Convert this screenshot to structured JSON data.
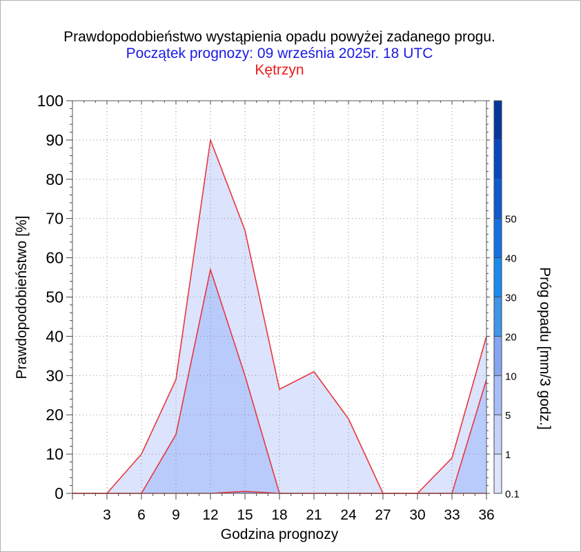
{
  "titles": {
    "line1": "Prawdopodobieństwo wystąpienia opadu powyżej zadanego progu.",
    "line2": "Początek prognozy: 09 września 2025r. 18 UTC",
    "line3": "Kętrzyn"
  },
  "chart_data": {
    "type": "area",
    "xlabel": "Godzina prognozy",
    "ylabel": "Prawdopodobieństwo [%]",
    "colorbar_label": "Próg opadu [mm/3 godz.]",
    "x": [
      0,
      3,
      6,
      9,
      12,
      15,
      18,
      21,
      24,
      27,
      30,
      33,
      36
    ],
    "xticks": [
      3,
      6,
      9,
      12,
      15,
      18,
      21,
      24,
      27,
      30,
      33,
      36
    ],
    "xlim": [
      0,
      36
    ],
    "yticks": [
      0,
      10,
      20,
      30,
      40,
      50,
      60,
      70,
      80,
      90,
      100
    ],
    "ylim": [
      0,
      100
    ],
    "grid": true,
    "series": [
      {
        "name": "0.1",
        "color": "#dce3fc",
        "values": [
          0,
          0,
          10,
          29,
          90,
          67,
          26.5,
          31,
          19,
          0,
          0,
          9,
          40
        ]
      },
      {
        "name": "1",
        "color": "#b9cbfb",
        "values": [
          0,
          0,
          0,
          15,
          57,
          30,
          0,
          0,
          0,
          0,
          0,
          0,
          29
        ]
      },
      {
        "name": "5",
        "color": "#8faaf5",
        "values": [
          0,
          0,
          0,
          0,
          0,
          0.5,
          0,
          0,
          0,
          0,
          0,
          0,
          0
        ]
      }
    ],
    "colorbar": {
      "labels": [
        "0.1",
        "1",
        "5",
        "10",
        "20",
        "30",
        "40",
        "50"
      ],
      "colors": [
        "#dde4fd",
        "#c5d3fb",
        "#a8bef8",
        "#86a6f2",
        "#3f97ea",
        "#1a8cf0",
        "#1472e3",
        "#0e5bd0",
        "#0a47bf",
        "#06369f"
      ]
    }
  }
}
